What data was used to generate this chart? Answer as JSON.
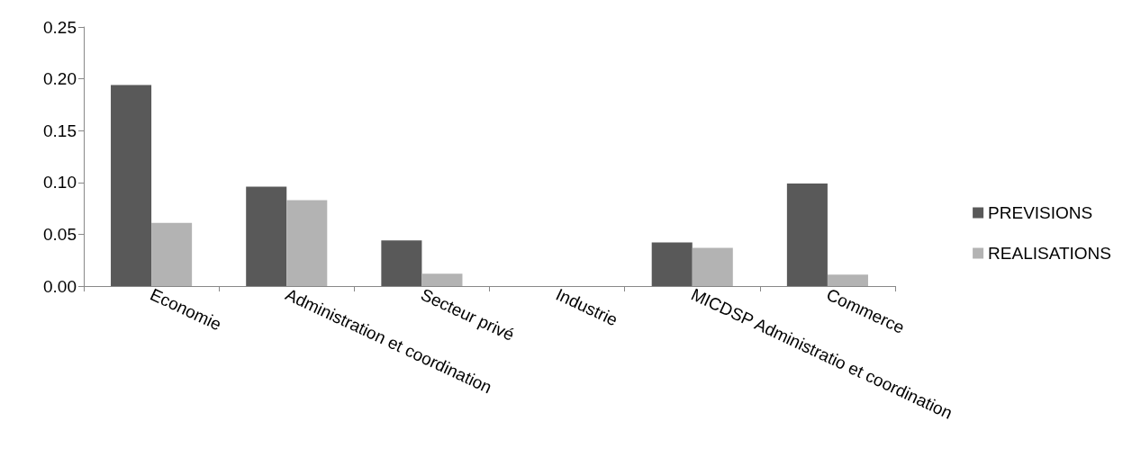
{
  "chart_data": {
    "type": "bar",
    "categories": [
      "Economie",
      "Administration et coordination",
      "Secteur privé",
      "Industrie",
      "MICDSP Administratio et coordination",
      "Commerce"
    ],
    "series": [
      {
        "name": "PREVISIONS",
        "color": "#595959",
        "values": [
          0.194,
          0.096,
          0.044,
          0,
          0.042,
          0.099
        ]
      },
      {
        "name": "REALISATIONS",
        "color": "#b3b3b3",
        "values": [
          0.061,
          0.083,
          0.012,
          0,
          0.037,
          0.011
        ]
      }
    ],
    "ylim": [
      0,
      0.25
    ],
    "yticks": [
      {
        "value": 0,
        "label": "0.00"
      },
      {
        "value": 0.05,
        "label": "0.05"
      },
      {
        "value": 0.1,
        "label": "0.10"
      },
      {
        "value": 0.15,
        "label": "0.15"
      },
      {
        "value": 0.2,
        "label": "0.20"
      },
      {
        "value": 0.25,
        "label": "0.25"
      }
    ],
    "grid": false,
    "legend": "right"
  }
}
